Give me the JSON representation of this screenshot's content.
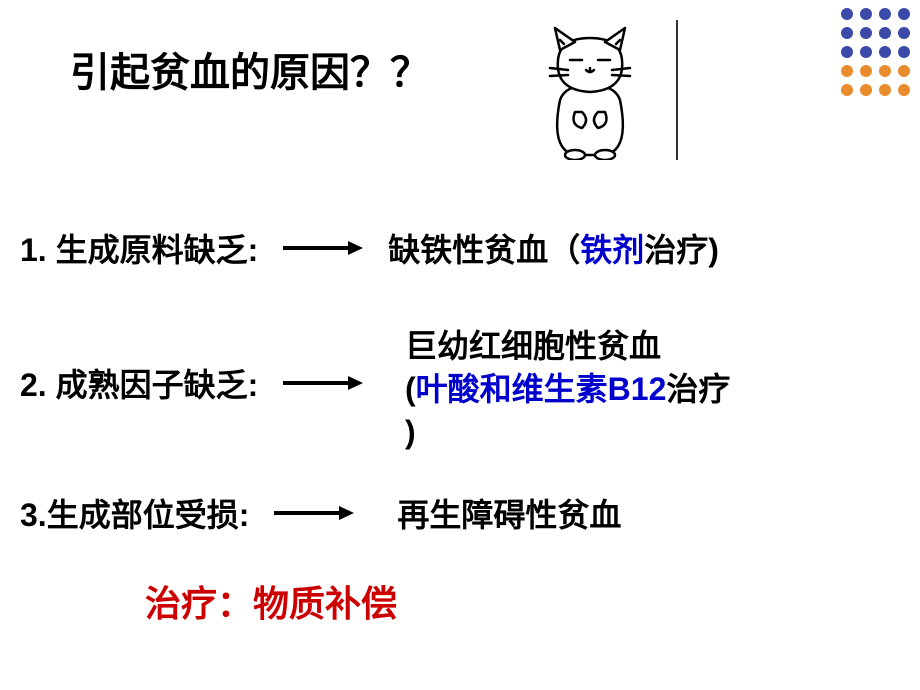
{
  "title": "引起贫血的原因？？",
  "dots": {
    "colors": [
      "#3b4aa8",
      "#3b4aa8",
      "#3b4aa8",
      "#3b4aa8",
      "#3b4aa8",
      "#3b4aa8",
      "#3b4aa8",
      "#3b4aa8",
      "#3b4aa8",
      "#3b4aa8",
      "#3b4aa8",
      "#3b4aa8",
      "#e98c2e",
      "#e98c2e",
      "#e98c2e",
      "#e98c2e",
      "#e98c2e",
      "#e98c2e",
      "#e98c2e",
      "#e98c2e"
    ]
  },
  "rows": [
    {
      "label": "1. 生成原料缺乏:",
      "result_prefix": "缺铁性贫血（",
      "result_blue": "铁剂",
      "result_suffix": "治疗)"
    },
    {
      "label": "2. 成熟因子缺乏:",
      "result_line1": "巨幼红细胞性贫血",
      "result_open": "(",
      "result_blue": "叶酸和维生素B12",
      "result_suffix": "治疗",
      "result_close": ")"
    },
    {
      "label": "3.生成部位受损:",
      "result": "再生障碍性贫血"
    }
  ],
  "footer": "治疗：物质补偿",
  "arrow": {
    "stroke": "#000000",
    "stroke_width": 4,
    "length": 70
  },
  "colors": {
    "blue": "#0000cc",
    "red": "#cc0000",
    "black": "#000000"
  },
  "illustration": {
    "stroke": "#000000",
    "fill": "#ffffff"
  }
}
